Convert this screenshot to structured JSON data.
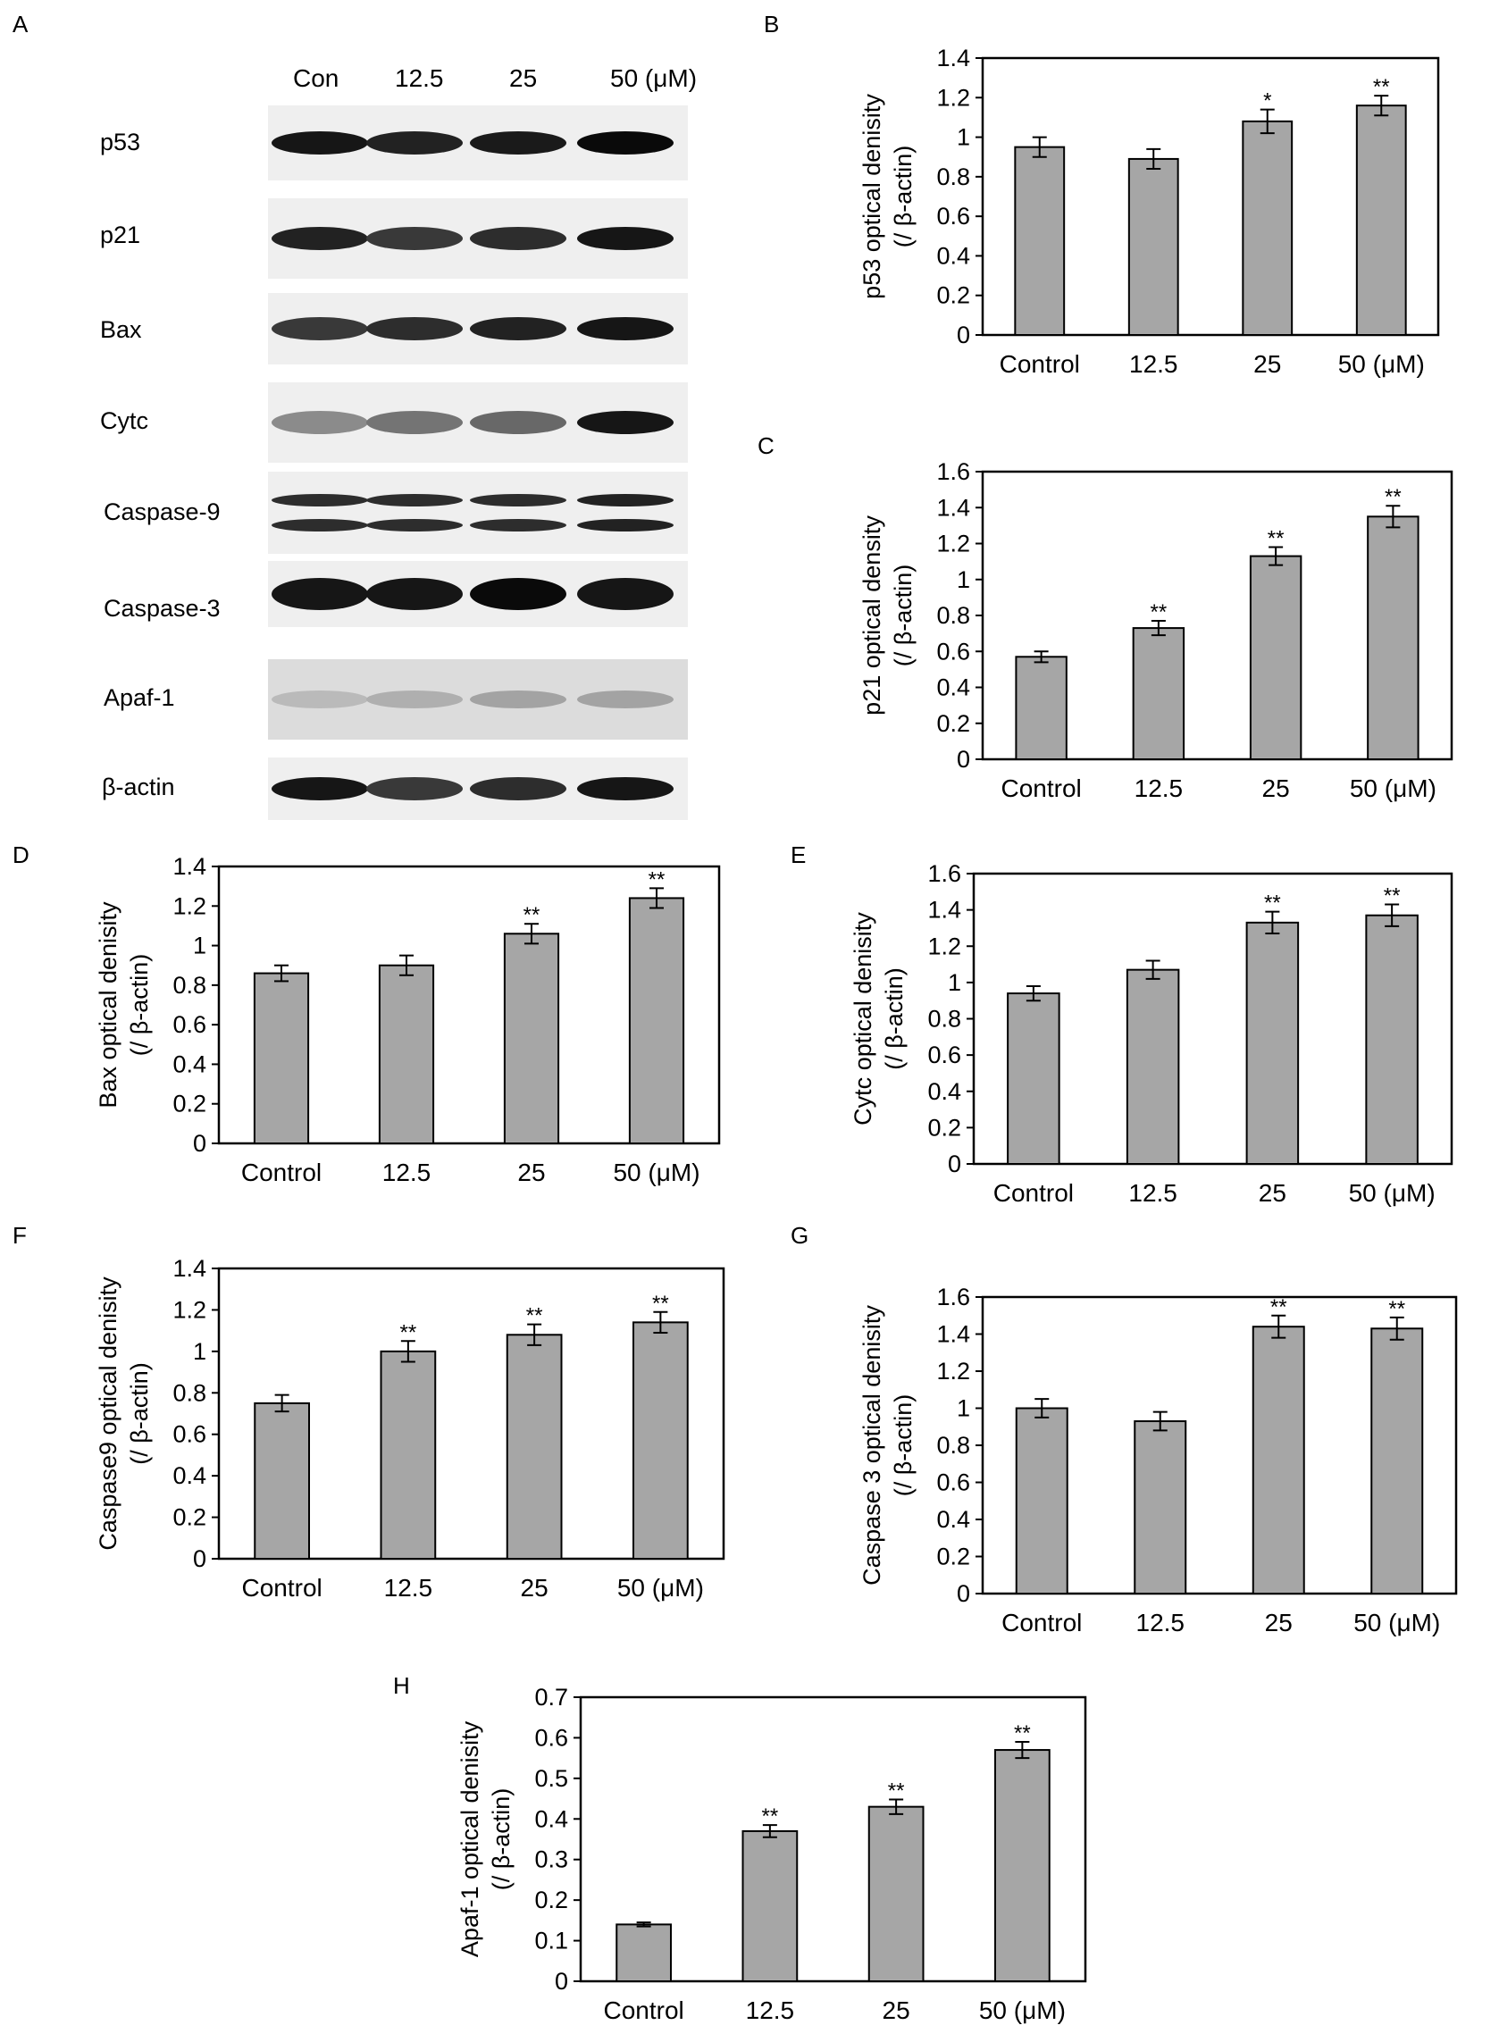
{
  "panels": {
    "A": "A",
    "B": "B",
    "C": "C",
    "D": "D",
    "E": "E",
    "F": "F",
    "G": "G",
    "H": "H"
  },
  "blot": {
    "lanes": [
      "Con",
      "12.5",
      "25",
      "50 (μM)"
    ],
    "proteins": [
      "p53",
      "p21",
      "Bax",
      "Cytc",
      "Caspase-9",
      "Caspase-3",
      "Apaf-1",
      "β-actin"
    ],
    "band_intensity": {
      "p53": [
        0.95,
        0.9,
        0.93,
        1.0
      ],
      "p21": [
        0.9,
        0.8,
        0.85,
        0.95
      ],
      "Bax": [
        0.8,
        0.85,
        0.9,
        0.95
      ],
      "Cytc": [
        0.45,
        0.55,
        0.6,
        0.95
      ],
      "Caspase-9": [
        0.85,
        0.85,
        0.85,
        0.9
      ],
      "Caspase-3": [
        0.95,
        0.95,
        1.0,
        0.95
      ],
      "Apaf-1": [
        0.25,
        0.3,
        0.35,
        0.35
      ],
      "β-actin": [
        0.95,
        0.8,
        0.85,
        0.95
      ]
    }
  },
  "chart_data": [
    {
      "panel": "B",
      "type": "bar",
      "categories": [
        "Control",
        "12.5",
        "25",
        "50 (μM)"
      ],
      "values": [
        0.95,
        0.89,
        1.08,
        1.16
      ],
      "errors": [
        0.05,
        0.05,
        0.06,
        0.05
      ],
      "significance": [
        "",
        "",
        "*",
        "**"
      ],
      "ylabel": "p53 optical denisity",
      "ylabel2": "(/ β-actin)",
      "ylim": [
        0,
        1.4
      ],
      "yticks": [
        "0",
        "0.2",
        "0.4",
        "0.6",
        "0.8",
        "1",
        "1.2",
        "1.4"
      ],
      "bar_color": "#a6a6a6"
    },
    {
      "panel": "C",
      "type": "bar",
      "categories": [
        "Control",
        "12.5",
        "25",
        "50 (μM)"
      ],
      "values": [
        0.57,
        0.73,
        1.13,
        1.35
      ],
      "errors": [
        0.03,
        0.04,
        0.05,
        0.06
      ],
      "significance": [
        "",
        "**",
        "**",
        "**"
      ],
      "ylabel": "p21 optical density",
      "ylabel2": "(/ β-actin)",
      "ylim": [
        0,
        1.6
      ],
      "yticks": [
        "0",
        "0.2",
        "0.4",
        "0.6",
        "0.8",
        "1",
        "1.2",
        "1.4",
        "1.6"
      ],
      "bar_color": "#a6a6a6"
    },
    {
      "panel": "D",
      "type": "bar",
      "categories": [
        "Control",
        "12.5",
        "25",
        "50 (μM)"
      ],
      "values": [
        0.86,
        0.9,
        1.06,
        1.24
      ],
      "errors": [
        0.04,
        0.05,
        0.05,
        0.05
      ],
      "significance": [
        "",
        "",
        "**",
        "**"
      ],
      "ylabel": "Bax optical denisity",
      "ylabel2": "(/ β-actin)",
      "ylim": [
        0,
        1.4
      ],
      "yticks": [
        "0",
        "0.2",
        "0.4",
        "0.6",
        "0.8",
        "1",
        "1.2",
        "1.4"
      ],
      "bar_color": "#a6a6a6"
    },
    {
      "panel": "E",
      "type": "bar",
      "categories": [
        "Control",
        "12.5",
        "25",
        "50 (μM)"
      ],
      "values": [
        0.94,
        1.07,
        1.33,
        1.37
      ],
      "errors": [
        0.04,
        0.05,
        0.06,
        0.06
      ],
      "significance": [
        "",
        "",
        "**",
        "**"
      ],
      "ylabel": "Cytc optical denisity",
      "ylabel2": "(/ β-actin)",
      "ylim": [
        0,
        1.6
      ],
      "yticks": [
        "0",
        "0.2",
        "0.4",
        "0.6",
        "0.8",
        "1",
        "1.2",
        "1.4",
        "1.6"
      ],
      "bar_color": "#a6a6a6"
    },
    {
      "panel": "F",
      "type": "bar",
      "categories": [
        "Control",
        "12.5",
        "25",
        "50 (μM)"
      ],
      "values": [
        0.75,
        1.0,
        1.08,
        1.14
      ],
      "errors": [
        0.04,
        0.05,
        0.05,
        0.05
      ],
      "significance": [
        "",
        "**",
        "**",
        "**"
      ],
      "ylabel": "Caspase9 optical denisity",
      "ylabel2": "(/ β-actin)",
      "ylim": [
        0,
        1.4
      ],
      "yticks": [
        "0",
        "0.2",
        "0.4",
        "0.6",
        "0.8",
        "1",
        "1.2",
        "1.4"
      ],
      "bar_color": "#a6a6a6"
    },
    {
      "panel": "G",
      "type": "bar",
      "categories": [
        "Control",
        "12.5",
        "25",
        "50 (μM)"
      ],
      "values": [
        1.0,
        0.93,
        1.44,
        1.43
      ],
      "errors": [
        0.05,
        0.05,
        0.06,
        0.06
      ],
      "significance": [
        "",
        "",
        "**",
        "**"
      ],
      "ylabel": "Caspase 3 optical denisity",
      "ylabel2": "(/ β-actin)",
      "ylim": [
        0,
        1.6
      ],
      "yticks": [
        "0",
        "0.2",
        "0.4",
        "0.6",
        "0.8",
        "1",
        "1.2",
        "1.4",
        "1.6"
      ],
      "bar_color": "#a6a6a6"
    },
    {
      "panel": "H",
      "type": "bar",
      "categories": [
        "Control",
        "12.5",
        "25",
        "50 (μM)"
      ],
      "values": [
        0.14,
        0.37,
        0.43,
        0.57
      ],
      "errors": [
        0.005,
        0.015,
        0.018,
        0.02
      ],
      "significance": [
        "",
        "**",
        "**",
        "**"
      ],
      "ylabel": "Apaf-1 optical denisity",
      "ylabel2": "(/ β-actin)",
      "ylim": [
        0,
        0.7
      ],
      "yticks": [
        "0",
        "0.1",
        "0.2",
        "0.3",
        "0.4",
        "0.5",
        "0.6",
        "0.7"
      ],
      "bar_color": "#a6a6a6"
    }
  ]
}
